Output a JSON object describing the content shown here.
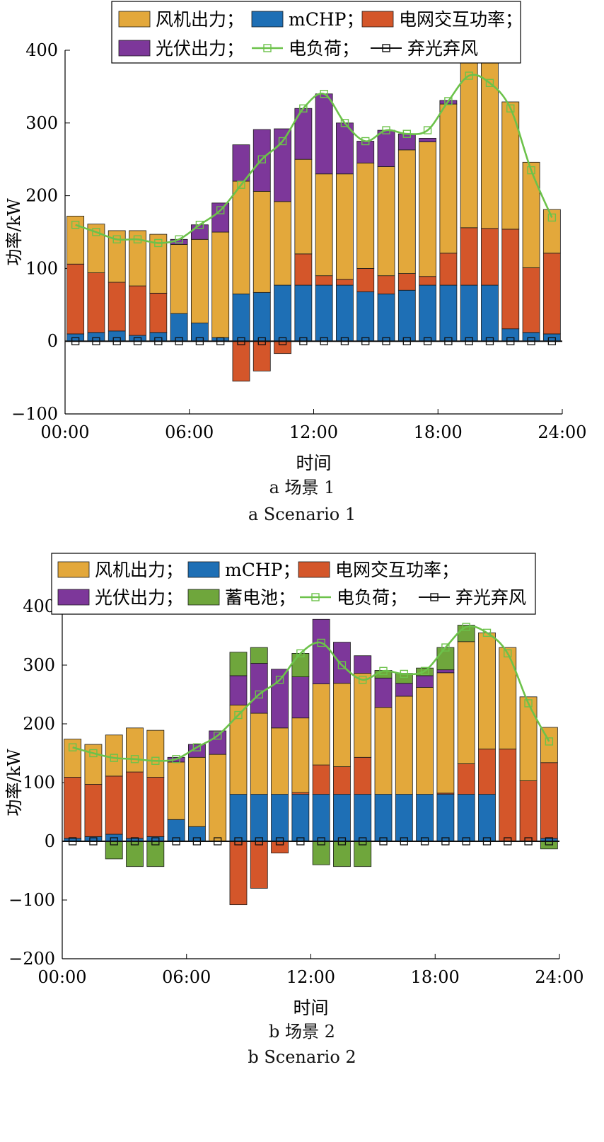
{
  "colors": {
    "wind": "#E3A83B",
    "mchp": "#1E6FB5",
    "grid": "#D4562A",
    "pv": "#7D379A",
    "battery": "#6FA63C",
    "load": "#6CC24A",
    "curtail": "#111111"
  },
  "chart_data": [
    {
      "type": "bar",
      "stacked": true,
      "xlabel": "时间",
      "ylabel": "功率/kW",
      "ylim": [
        -100,
        400
      ],
      "yticks": [
        "400",
        "300",
        "200",
        "100",
        "0",
        "−100"
      ],
      "ytick_values": [
        400,
        300,
        200,
        100,
        0,
        -100
      ],
      "xticks": [
        "00:00",
        "06:00",
        "12:00",
        "18:00",
        "24:00"
      ],
      "xlim": [
        0,
        24
      ],
      "legend_placement": "top",
      "legend": [
        "风机出力；",
        "mCHP；",
        "电网交互功率；",
        "光伏出力；",
        "电负荷；",
        "弃光弃风"
      ],
      "caption_cn": "a  场景 1",
      "caption_en": "a  Scenario 1",
      "series": [
        {
          "name": "mCHP；",
          "key": "mchp",
          "values": [
            10,
            12,
            14,
            8,
            12,
            38,
            25,
            5,
            65,
            67,
            77,
            77,
            77,
            77,
            68,
            65,
            70,
            77,
            77,
            77,
            77,
            17,
            12,
            10
          ]
        },
        {
          "name": "电网交互功率；",
          "key": "grid",
          "values": [
            96,
            82,
            67,
            68,
            54,
            0,
            0,
            0,
            -55,
            -41,
            -17,
            43,
            13,
            8,
            32,
            25,
            23,
            12,
            44,
            79,
            78,
            137,
            89,
            111
          ]
        },
        {
          "name": "风机出力；",
          "key": "wind",
          "values": [
            66,
            67,
            71,
            76,
            81,
            95,
            115,
            145,
            155,
            139,
            115,
            130,
            140,
            145,
            145,
            150,
            170,
            185,
            205,
            290,
            277,
            175,
            145,
            60
          ]
        },
        {
          "name": "光伏出力；",
          "key": "pv",
          "values": [
            0,
            0,
            0,
            0,
            0,
            7,
            20,
            40,
            50,
            85,
            100,
            70,
            110,
            70,
            30,
            50,
            22,
            5,
            5,
            0,
            0,
            0,
            0,
            0
          ]
        }
      ],
      "load": [
        160,
        150,
        140,
        140,
        135,
        140,
        160,
        180,
        215,
        250,
        275,
        320,
        340,
        300,
        275,
        290,
        285,
        290,
        330,
        365,
        355,
        320,
        235,
        170
      ],
      "curtail": [
        0,
        0,
        0,
        0,
        0,
        0,
        0,
        0,
        0,
        0,
        0,
        0,
        0,
        0,
        0,
        0,
        0,
        0,
        0,
        0,
        0,
        0,
        0,
        0
      ]
    },
    {
      "type": "bar",
      "stacked": true,
      "xlabel": "时间",
      "ylabel": "功率/kW",
      "ylim": [
        -200,
        400
      ],
      "yticks": [
        "400",
        "300",
        "200",
        "100",
        "0",
        "−100",
        "−200"
      ],
      "ytick_values": [
        400,
        300,
        200,
        100,
        0,
        -100,
        -200
      ],
      "xticks": [
        "00:00",
        "06:00",
        "12:00",
        "18:00",
        "24:00"
      ],
      "xlim": [
        0,
        24
      ],
      "legend_placement": "top",
      "legend": [
        "风机出力；",
        "mCHP；",
        "电网交互功率；",
        "光伏出力；",
        "蓄电池；",
        "电负荷；",
        "弃光弃风"
      ],
      "caption_cn": "b  场景 2",
      "caption_en": "b  Scenario 2",
      "series": [
        {
          "name": "mCHP；",
          "key": "mchp",
          "values": [
            5,
            8,
            12,
            5,
            8,
            37,
            25,
            0,
            80,
            80,
            80,
            80,
            80,
            80,
            80,
            80,
            80,
            80,
            80,
            80,
            80,
            0,
            0,
            5
          ]
        },
        {
          "name": "电网交互功率；",
          "key": "grid",
          "values": [
            104,
            89,
            99,
            113,
            101,
            0,
            0,
            0,
            -108,
            -80,
            -20,
            3,
            50,
            47,
            63,
            0,
            0,
            0,
            2,
            52,
            77,
            157,
            103,
            129
          ]
        },
        {
          "name": "风机出力；",
          "key": "wind",
          "values": [
            65,
            68,
            70,
            75,
            80,
            98,
            118,
            148,
            152,
            138,
            113,
            127,
            138,
            142,
            143,
            148,
            167,
            182,
            205,
            208,
            198,
            173,
            143,
            60
          ]
        },
        {
          "name": "光伏出力；",
          "key": "pv",
          "values": [
            0,
            0,
            0,
            0,
            0,
            8,
            22,
            40,
            50,
            85,
            100,
            70,
            110,
            70,
            30,
            50,
            22,
            20,
            5,
            0,
            0,
            0,
            0,
            0
          ]
        },
        {
          "name": "蓄电池；",
          "key": "battery",
          "values": [
            0,
            0,
            -30,
            -43,
            -43,
            0,
            0,
            0,
            40,
            27,
            0,
            40,
            -40,
            -43,
            -43,
            13,
            17,
            13,
            38,
            28,
            0,
            0,
            0,
            -13
          ]
        }
      ],
      "load": [
        160,
        150,
        142,
        140,
        137,
        140,
        160,
        180,
        215,
        250,
        275,
        320,
        338,
        300,
        275,
        290,
        285,
        290,
        330,
        365,
        355,
        320,
        235,
        170
      ],
      "curtail": [
        0,
        0,
        0,
        0,
        0,
        0,
        0,
        0,
        0,
        0,
        0,
        0,
        0,
        0,
        0,
        0,
        0,
        0,
        0,
        0,
        0,
        0,
        0,
        0
      ]
    }
  ]
}
